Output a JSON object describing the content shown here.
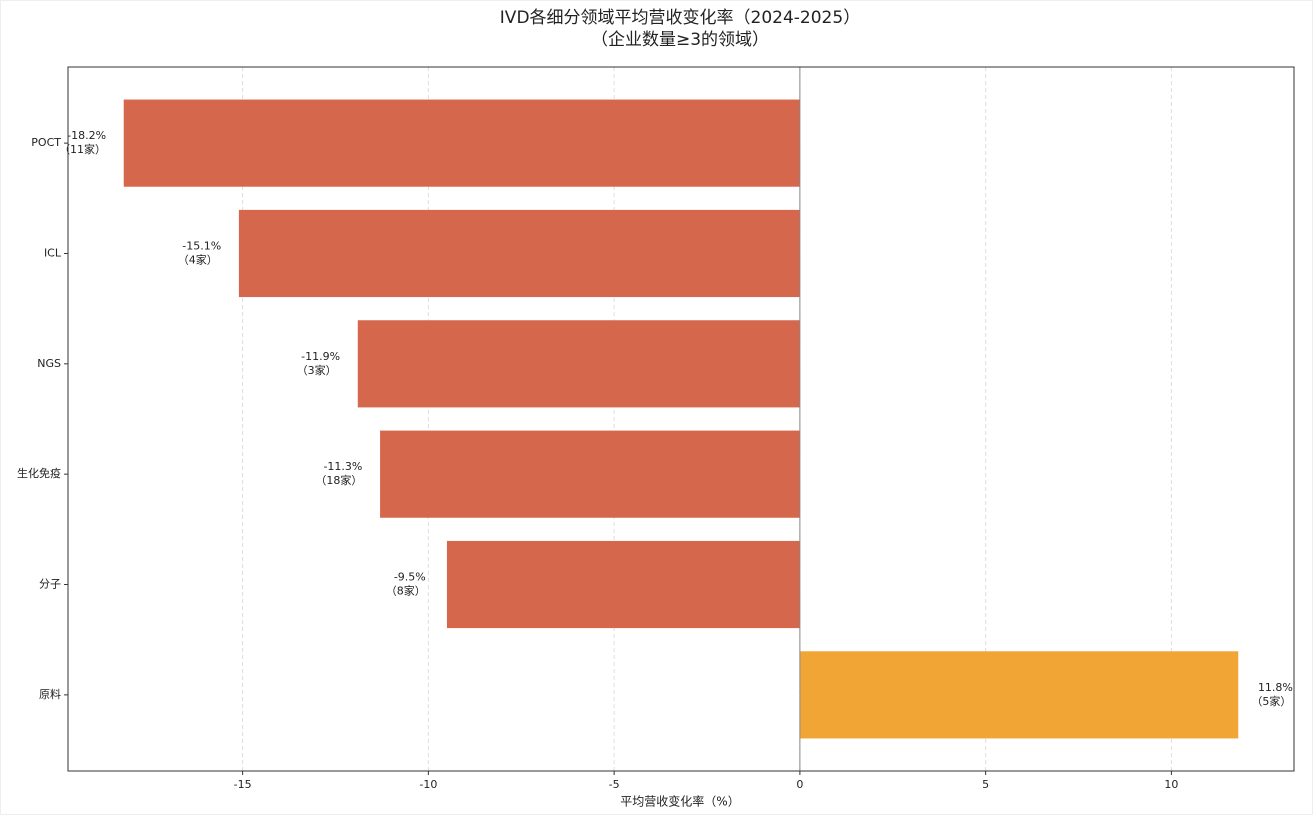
{
  "chart_data": {
    "type": "barh",
    "title": "IVD各细分领域平均营收变化率（2024-2025）",
    "subtitle": "（企业数量≥3的领域）",
    "x_label": "平均营收变化率（%）",
    "categories": [
      "POCT",
      "ICL",
      "NGS",
      "生化免疫",
      "分子",
      "原料"
    ],
    "values": [
      -18.2,
      -15.1,
      -11.9,
      -11.3,
      -9.5,
      11.8
    ],
    "value_labels": [
      "-18.2%",
      "-15.1%",
      "-11.9%",
      "-11.3%",
      "-9.5%",
      "11.8%"
    ],
    "count_labels": [
      "（11家）",
      "（4家）",
      "（3家）",
      "（18家）",
      "（8家）",
      "（5家）"
    ],
    "colors": [
      "#d4674c",
      "#d4674c",
      "#d4674c",
      "#d4674c",
      "#d4674c",
      "#f0a535"
    ],
    "xlim": [
      -19.7,
      13.3
    ],
    "xticks": [
      -15,
      -10,
      -5,
      0,
      5,
      10
    ],
    "grid": true
  }
}
